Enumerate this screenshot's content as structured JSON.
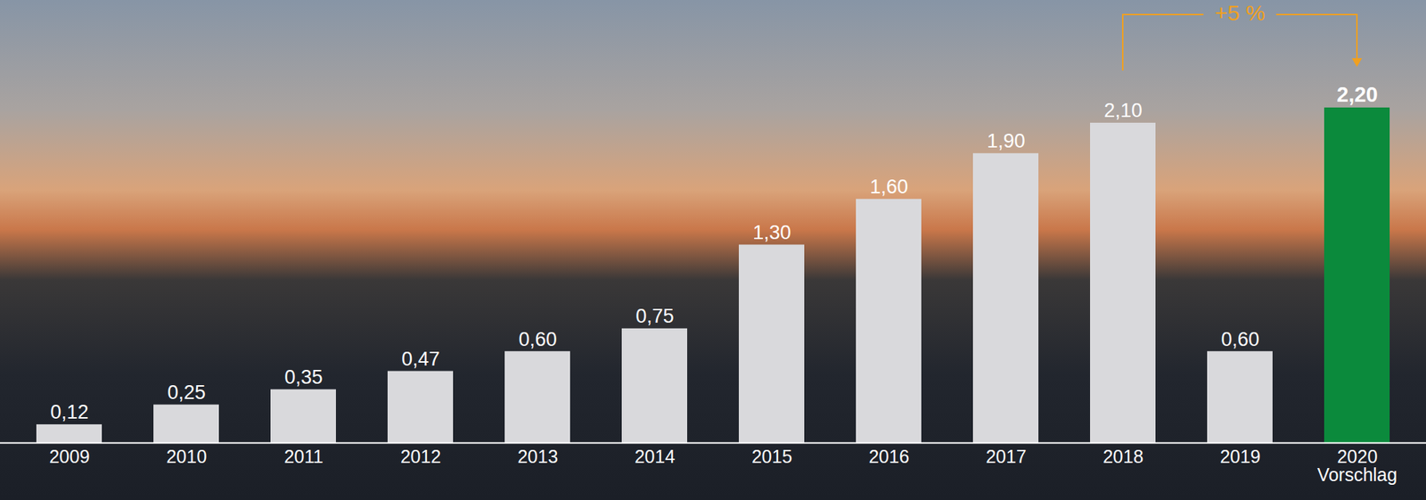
{
  "chart_data": {
    "type": "bar",
    "categories": [
      "2009",
      "2010",
      "2011",
      "2012",
      "2013",
      "2014",
      "2015",
      "2016",
      "2017",
      "2018",
      "2019",
      "2020\nVorschlag"
    ],
    "values": [
      0.12,
      0.25,
      0.35,
      0.47,
      0.6,
      0.75,
      1.3,
      1.6,
      1.9,
      2.1,
      0.6,
      2.2
    ],
    "value_labels": [
      "0,12",
      "0,25",
      "0,35",
      "0,47",
      "0,60",
      "0,75",
      "1,30",
      "1,60",
      "1,90",
      "2,10",
      "0,60",
      "2,20"
    ],
    "colors": [
      "#d9d9dc",
      "#d9d9dc",
      "#d9d9dc",
      "#d9d9dc",
      "#d9d9dc",
      "#d9d9dc",
      "#d9d9dc",
      "#d9d9dc",
      "#d9d9dc",
      "#d9d9dc",
      "#d9d9dc",
      "#0b8a3c"
    ],
    "ylim": [
      0,
      2.4
    ],
    "data_labels": true,
    "tick_labels": "x",
    "annotations": [
      {
        "text": "+5 %",
        "from": "2018",
        "to": "2020\nVorschlag",
        "color": "#f0a020"
      }
    ]
  }
}
